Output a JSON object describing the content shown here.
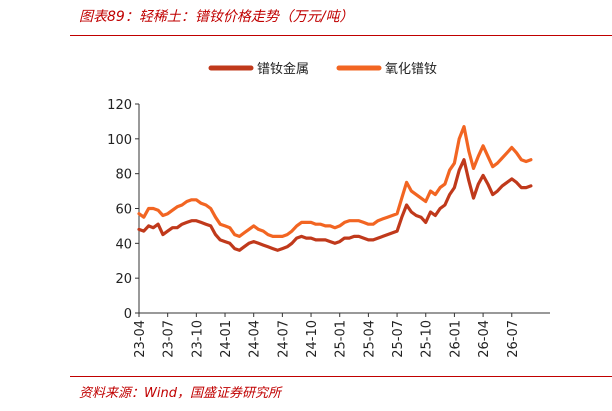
{
  "figure": {
    "title": "图表89：轻稀土：镨钕价格走势（万元/吨）",
    "source": "资料来源：Wind，国盛证券研究所"
  },
  "colors": {
    "frame": "#c00000",
    "series_metal": "#c0391b",
    "series_oxide": "#f26522",
    "axis": "#333333"
  },
  "chart_data": {
    "type": "line",
    "title": "",
    "xlabel": "",
    "ylabel": "",
    "ylim": [
      0,
      120
    ],
    "yticks": [
      0,
      20,
      40,
      60,
      80,
      100,
      120
    ],
    "xlim": [
      0,
      43
    ],
    "xticks": [
      {
        "pos": 0,
        "label": "23-04"
      },
      {
        "pos": 3,
        "label": "23-07"
      },
      {
        "pos": 6,
        "label": "23-10"
      },
      {
        "pos": 9,
        "label": "24-01"
      },
      {
        "pos": 12,
        "label": "24-04"
      },
      {
        "pos": 15,
        "label": "24-07"
      },
      {
        "pos": 18,
        "label": "24-10"
      },
      {
        "pos": 21,
        "label": "25-01"
      },
      {
        "pos": 24,
        "label": "25-04"
      },
      {
        "pos": 27,
        "label": "25-07"
      },
      {
        "pos": 30,
        "label": "25-10"
      },
      {
        "pos": 33,
        "label": "26-01"
      },
      {
        "pos": 36,
        "label": "26-04"
      },
      {
        "pos": 39,
        "label": "26-07"
      }
    ],
    "grid": false,
    "legend": "top-center",
    "series": [
      {
        "name": "镨钕金属",
        "color": "#c0391b",
        "points": [
          [
            0,
            48
          ],
          [
            0.5,
            47
          ],
          [
            1,
            50
          ],
          [
            1.5,
            49
          ],
          [
            2,
            51
          ],
          [
            2.5,
            45
          ],
          [
            3,
            47
          ],
          [
            3.5,
            49
          ],
          [
            4,
            49
          ],
          [
            4.5,
            51
          ],
          [
            5,
            52
          ],
          [
            5.5,
            53
          ],
          [
            6,
            53
          ],
          [
            6.5,
            52
          ],
          [
            7,
            51
          ],
          [
            7.5,
            50
          ],
          [
            8,
            45
          ],
          [
            8.5,
            42
          ],
          [
            9,
            41
          ],
          [
            9.5,
            40
          ],
          [
            10,
            37
          ],
          [
            10.5,
            36
          ],
          [
            11,
            38
          ],
          [
            11.5,
            40
          ],
          [
            12,
            41
          ],
          [
            12.5,
            40
          ],
          [
            13,
            39
          ],
          [
            13.5,
            38
          ],
          [
            14,
            37
          ],
          [
            14.5,
            36
          ],
          [
            15,
            37
          ],
          [
            15.5,
            38
          ],
          [
            16,
            40
          ],
          [
            16.5,
            43
          ],
          [
            17,
            44
          ],
          [
            17.5,
            43
          ],
          [
            18,
            43
          ],
          [
            18.5,
            42
          ],
          [
            19,
            42
          ],
          [
            19.5,
            42
          ],
          [
            20,
            41
          ],
          [
            20.5,
            40
          ],
          [
            21,
            41
          ],
          [
            21.5,
            43
          ],
          [
            22,
            43
          ],
          [
            22.5,
            44
          ],
          [
            23,
            44
          ],
          [
            23.5,
            43
          ],
          [
            24,
            42
          ],
          [
            24.5,
            42
          ],
          [
            25,
            43
          ],
          [
            25.5,
            44
          ],
          [
            26,
            45
          ],
          [
            26.5,
            46
          ],
          [
            27,
            47
          ],
          [
            27.5,
            55
          ],
          [
            28,
            62
          ],
          [
            28.5,
            58
          ],
          [
            29,
            56
          ],
          [
            29.5,
            55
          ],
          [
            30,
            52
          ],
          [
            30.5,
            58
          ],
          [
            31,
            56
          ],
          [
            31.5,
            60
          ],
          [
            32,
            62
          ],
          [
            32.5,
            68
          ],
          [
            33,
            72
          ],
          [
            33.5,
            82
          ],
          [
            34,
            88
          ],
          [
            34.5,
            76
          ],
          [
            35,
            66
          ],
          [
            35.5,
            74
          ],
          [
            36,
            79
          ],
          [
            36.5,
            74
          ],
          [
            37,
            68
          ],
          [
            37.5,
            70
          ],
          [
            38,
            73
          ],
          [
            38.5,
            75
          ],
          [
            39,
            77
          ],
          [
            39.5,
            75
          ],
          [
            40,
            72
          ],
          [
            40.5,
            72
          ],
          [
            41,
            73
          ]
        ]
      },
      {
        "name": "氧化镨钕",
        "color": "#f26522",
        "points": [
          [
            0,
            57
          ],
          [
            0.5,
            55
          ],
          [
            1,
            60
          ],
          [
            1.5,
            60
          ],
          [
            2,
            59
          ],
          [
            2.5,
            56
          ],
          [
            3,
            57
          ],
          [
            3.5,
            59
          ],
          [
            4,
            61
          ],
          [
            4.5,
            62
          ],
          [
            5,
            64
          ],
          [
            5.5,
            65
          ],
          [
            6,
            65
          ],
          [
            6.5,
            63
          ],
          [
            7,
            62
          ],
          [
            7.5,
            60
          ],
          [
            8,
            55
          ],
          [
            8.5,
            51
          ],
          [
            9,
            50
          ],
          [
            9.5,
            49
          ],
          [
            10,
            45
          ],
          [
            10.5,
            44
          ],
          [
            11,
            46
          ],
          [
            11.5,
            48
          ],
          [
            12,
            50
          ],
          [
            12.5,
            48
          ],
          [
            13,
            47
          ],
          [
            13.5,
            45
          ],
          [
            14,
            44
          ],
          [
            14.5,
            44
          ],
          [
            15,
            44
          ],
          [
            15.5,
            45
          ],
          [
            16,
            47
          ],
          [
            16.5,
            50
          ],
          [
            17,
            52
          ],
          [
            17.5,
            52
          ],
          [
            18,
            52
          ],
          [
            18.5,
            51
          ],
          [
            19,
            51
          ],
          [
            19.5,
            50
          ],
          [
            20,
            50
          ],
          [
            20.5,
            49
          ],
          [
            21,
            50
          ],
          [
            21.5,
            52
          ],
          [
            22,
            53
          ],
          [
            22.5,
            53
          ],
          [
            23,
            53
          ],
          [
            23.5,
            52
          ],
          [
            24,
            51
          ],
          [
            24.5,
            51
          ],
          [
            25,
            53
          ],
          [
            25.5,
            54
          ],
          [
            26,
            55
          ],
          [
            26.5,
            56
          ],
          [
            27,
            57
          ],
          [
            27.5,
            66
          ],
          [
            28,
            75
          ],
          [
            28.5,
            70
          ],
          [
            29,
            68
          ],
          [
            29.5,
            66
          ],
          [
            30,
            64
          ],
          [
            30.5,
            70
          ],
          [
            31,
            68
          ],
          [
            31.5,
            72
          ],
          [
            32,
            74
          ],
          [
            32.5,
            82
          ],
          [
            33,
            86
          ],
          [
            33.5,
            100
          ],
          [
            34,
            107
          ],
          [
            34.5,
            93
          ],
          [
            35,
            83
          ],
          [
            35.5,
            90
          ],
          [
            36,
            96
          ],
          [
            36.5,
            90
          ],
          [
            37,
            84
          ],
          [
            37.5,
            86
          ],
          [
            38,
            89
          ],
          [
            38.5,
            92
          ],
          [
            39,
            95
          ],
          [
            39.5,
            92
          ],
          [
            40,
            88
          ],
          [
            40.5,
            87
          ],
          [
            41,
            88
          ]
        ]
      }
    ]
  }
}
